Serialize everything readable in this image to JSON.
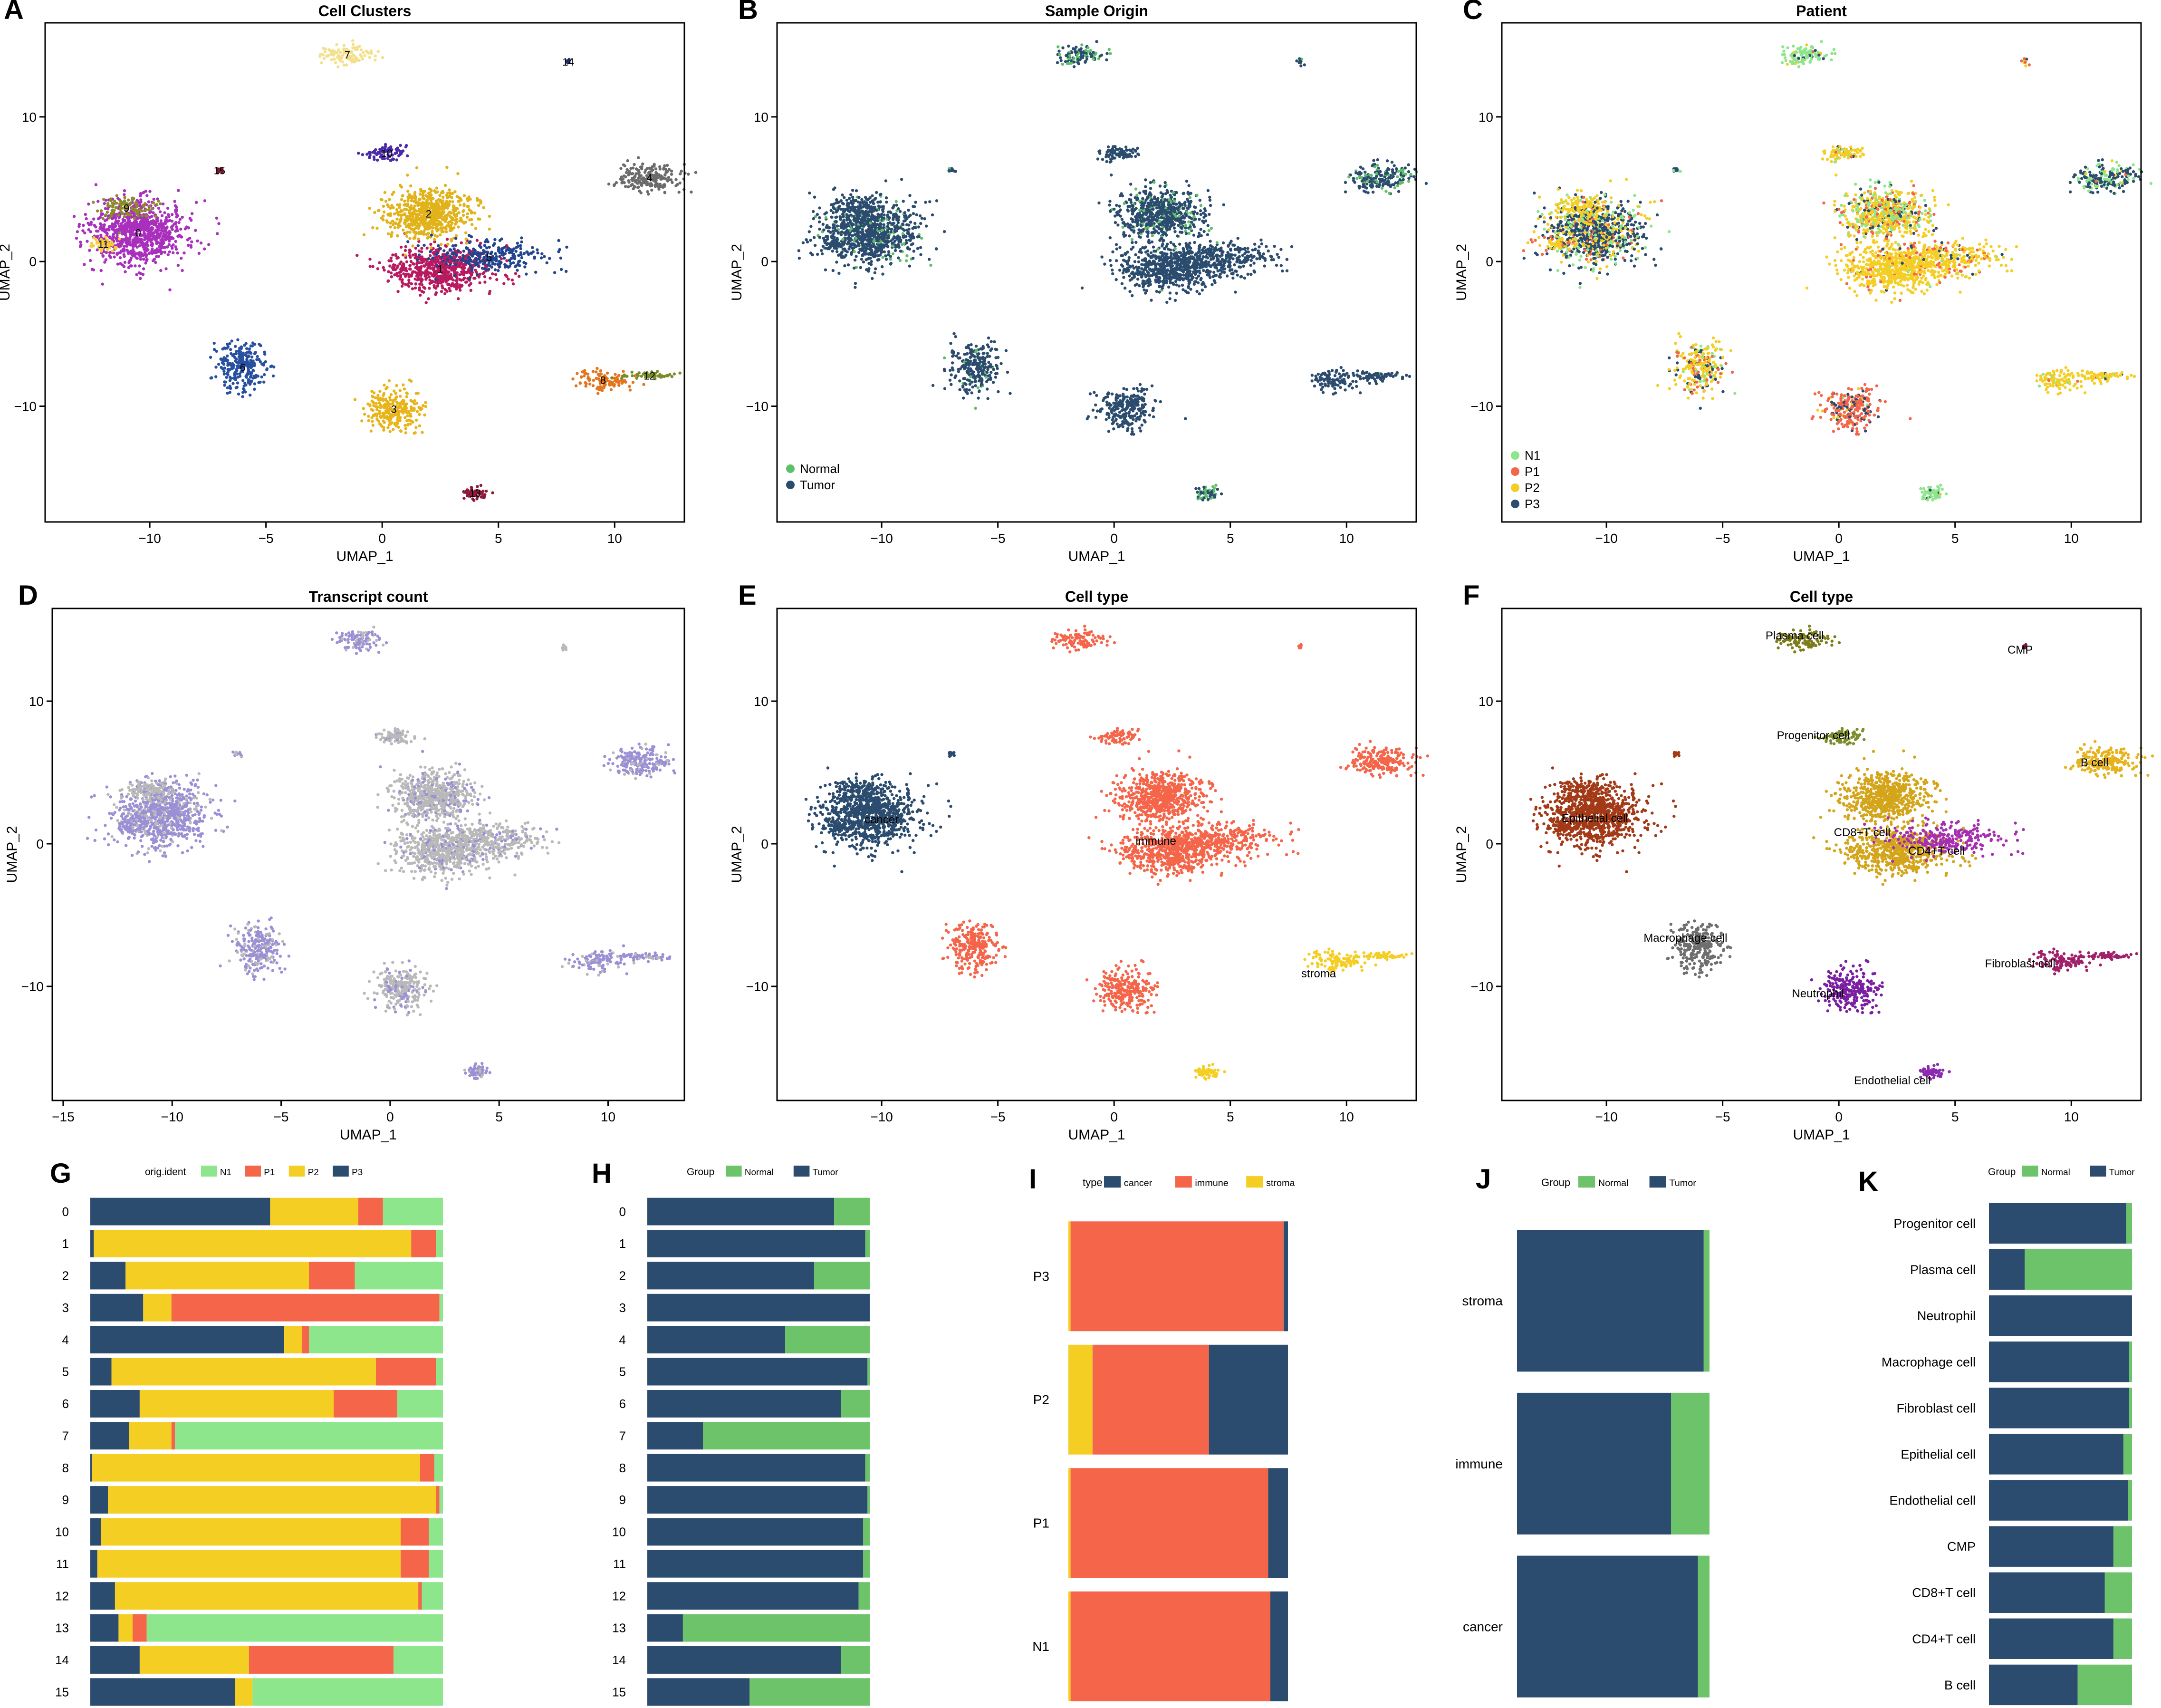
{
  "colors": {
    "navy": "#2b4c6e",
    "red": "#f4654a",
    "yellow": "#f5ce24",
    "light_green": "#8de68c",
    "green": "#6cc36a",
    "grey": "#6b6b6b",
    "lavender": "#9b8fd6",
    "light_grey": "#b9b9b9"
  },
  "chart_data": [
    {
      "panel": "A",
      "type": "scatter",
      "title": "Cell Clusters",
      "xlabel": "UMAP_1",
      "ylabel": "UMAP_2",
      "xlim": [
        -14.5,
        13
      ],
      "ylim": [
        -18,
        16.5
      ],
      "xticks": [
        -10,
        -5,
        0,
        5,
        10
      ],
      "yticks": [
        -10,
        0,
        10
      ],
      "xtick_labels": [
        "−10",
        "−5",
        "0",
        "5",
        "10"
      ],
      "ytick_labels": [
        "−10",
        "0",
        "10"
      ],
      "clusters": [
        {
          "name": "0",
          "x": -10.5,
          "y": 2.0,
          "sx": 1.7,
          "sy": 1.8,
          "n": 900,
          "color": "#a92fbd"
        },
        {
          "name": "1",
          "x": 2.5,
          "y": -0.5,
          "sx": 1.9,
          "sy": 1.3,
          "n": 650,
          "color": "#b81a5f"
        },
        {
          "name": "2",
          "x": 2.0,
          "y": 3.3,
          "sx": 1.5,
          "sy": 1.4,
          "n": 650,
          "color": "#e1b21a"
        },
        {
          "name": "3",
          "x": 0.5,
          "y": -10.2,
          "sx": 1.0,
          "sy": 1.2,
          "n": 260,
          "color": "#e8b419"
        },
        {
          "name": "4",
          "x": 11.5,
          "y": 5.8,
          "sx": 1.1,
          "sy": 0.8,
          "n": 200,
          "color": "#6b6b6b"
        },
        {
          "name": "5",
          "x": 4.6,
          "y": 0.3,
          "sx": 2.0,
          "sy": 0.9,
          "n": 260,
          "color": "#23448e"
        },
        {
          "name": "6",
          "x": -6.0,
          "y": -7.3,
          "sx": 0.9,
          "sy": 1.4,
          "n": 260,
          "color": "#2750a1"
        },
        {
          "name": "7",
          "x": -1.5,
          "y": 14.3,
          "sx": 0.9,
          "sy": 0.6,
          "n": 110,
          "color": "#f4e08c"
        },
        {
          "name": "8",
          "x": 9.5,
          "y": -8.2,
          "sx": 1.0,
          "sy": 0.6,
          "n": 110,
          "color": "#e4751f"
        },
        {
          "name": "9",
          "x": -11.0,
          "y": 3.7,
          "sx": 0.9,
          "sy": 0.6,
          "n": 110,
          "color": "#8b8b2a"
        },
        {
          "name": "10",
          "x": 0.2,
          "y": 7.5,
          "sx": 0.7,
          "sy": 0.4,
          "n": 80,
          "color": "#4b2ba8"
        },
        {
          "name": "11",
          "x": -12.0,
          "y": 1.2,
          "sx": 0.5,
          "sy": 0.4,
          "n": 50,
          "color": "#f5cf3b"
        },
        {
          "name": "12",
          "x": 11.5,
          "y": -7.9,
          "sx": 0.9,
          "sy": 0.2,
          "n": 60,
          "color": "#7a8c2a"
        },
        {
          "name": "13",
          "x": 4.0,
          "y": -16.0,
          "sx": 0.4,
          "sy": 0.4,
          "n": 60,
          "color": "#8b1a3a"
        },
        {
          "name": "14",
          "x": 8.0,
          "y": 13.8,
          "sx": 0.1,
          "sy": 0.15,
          "n": 10,
          "color": "#1f2a6b"
        },
        {
          "name": "15",
          "x": -7.0,
          "y": 6.3,
          "sx": 0.2,
          "sy": 0.15,
          "n": 12,
          "color": "#7b1a2f"
        }
      ]
    },
    {
      "panel": "B",
      "type": "scatter",
      "title": "Sample Origin",
      "xlabel": "UMAP_1",
      "ylabel": "UMAP_2",
      "xlim": [
        -14.5,
        13
      ],
      "ylim": [
        -18,
        16.5
      ],
      "xticks": [
        -10,
        -5,
        0,
        5,
        10
      ],
      "yticks": [
        -10,
        0,
        10
      ],
      "xtick_labels": [
        "−10",
        "−5",
        "0",
        "5",
        "10"
      ],
      "ytick_labels": [
        "−10",
        "0",
        "10"
      ],
      "legend": [
        {
          "label": "Normal",
          "color": "#5fbf6a"
        },
        {
          "label": "Tumor",
          "color": "#2b4c6e"
        }
      ],
      "legend_position": "bottom-left"
    },
    {
      "panel": "C",
      "type": "scatter",
      "title": "Patient",
      "xlabel": "UMAP_1",
      "ylabel": "UMAP_2",
      "xlim": [
        -14.5,
        13
      ],
      "ylim": [
        -18,
        16.5
      ],
      "xticks": [
        -10,
        -5,
        0,
        5,
        10
      ],
      "yticks": [
        -10,
        0,
        10
      ],
      "xtick_labels": [
        "−10",
        "−5",
        "0",
        "5",
        "10"
      ],
      "ytick_labels": [
        "−10",
        "0",
        "10"
      ],
      "legend": [
        {
          "label": "N1",
          "color": "#8de68c"
        },
        {
          "label": "P1",
          "color": "#f4654a"
        },
        {
          "label": "P2",
          "color": "#f5ce24"
        },
        {
          "label": "P3",
          "color": "#2b4c6e"
        }
      ],
      "legend_position": "bottom-left"
    },
    {
      "panel": "D",
      "type": "scatter",
      "title": "Transcript count",
      "xlabel": "UMAP_1",
      "ylabel": "UMAP_2",
      "xlim": [
        -15.5,
        13.5
      ],
      "ylim": [
        -18,
        16.5
      ],
      "xticks": [
        -15,
        -10,
        -5,
        0,
        5,
        10
      ],
      "yticks": [
        -10,
        0,
        10
      ],
      "xtick_labels": [
        "−15",
        "−10",
        "−5",
        "0",
        "5",
        "10"
      ],
      "ytick_labels": [
        "−10",
        "0",
        "10"
      ]
    },
    {
      "panel": "E",
      "type": "scatter",
      "title": "Cell type",
      "xlabel": "UMAP_1",
      "ylabel": "UMAP_2",
      "xlim": [
        -14.5,
        13
      ],
      "ylim": [
        -18,
        16.5
      ],
      "xticks": [
        -10,
        -5,
        0,
        5,
        10
      ],
      "yticks": [
        -10,
        0,
        10
      ],
      "xtick_labels": [
        "−10",
        "−5",
        "0",
        "5",
        "10"
      ],
      "ytick_labels": [
        "−10",
        "0",
        "10"
      ],
      "annotations": [
        {
          "text": "cancer",
          "x": -10.0,
          "y": 1.7
        },
        {
          "text": "immune",
          "x": 1.8,
          "y": 0.2
        },
        {
          "text": "stroma",
          "x": 8.8,
          "y": -9.1
        }
      ]
    },
    {
      "panel": "F",
      "type": "scatter",
      "title": "Cell type",
      "xlabel": "UMAP_1",
      "ylabel": "UMAP_2",
      "xlim": [
        -14.5,
        13
      ],
      "ylim": [
        -18,
        16.5
      ],
      "xticks": [
        -10,
        -5,
        0,
        5,
        10
      ],
      "yticks": [
        -10,
        0,
        10
      ],
      "xtick_labels": [
        "−10",
        "−5",
        "0",
        "5",
        "10"
      ],
      "ytick_labels": [
        "−10",
        "0",
        "10"
      ],
      "annotations": [
        {
          "text": "Plasma cell",
          "x": -1.9,
          "y": 14.6
        },
        {
          "text": "CMP",
          "x": 7.8,
          "y": 13.6
        },
        {
          "text": "Progenitor cell",
          "x": -1.1,
          "y": 7.6
        },
        {
          "text": "B cell",
          "x": 11.0,
          "y": 5.7
        },
        {
          "text": "Epithelial cell",
          "x": -10.5,
          "y": 1.8
        },
        {
          "text": "CD8+T cell",
          "x": 1.0,
          "y": 0.8
        },
        {
          "text": "CD4+T cell",
          "x": 4.2,
          "y": -0.5
        },
        {
          "text": "Macrophage cell",
          "x": -6.6,
          "y": -6.6
        },
        {
          "text": "Neutrophil",
          "x": -0.9,
          "y": -10.5
        },
        {
          "text": "Fibroblast cell",
          "x": 7.8,
          "y": -8.4
        },
        {
          "text": "Endothelial cell",
          "x": 2.3,
          "y": -16.6
        }
      ]
    },
    {
      "panel": "G",
      "type": "bar",
      "orientation": "horizontal",
      "stacked": true,
      "legend_title": "orig.ident",
      "categories": [
        "0",
        "1",
        "2",
        "3",
        "4",
        "5",
        "6",
        "7",
        "8",
        "9",
        "10",
        "11",
        "12",
        "13",
        "14",
        "15"
      ],
      "series": [
        {
          "name": "P3",
          "color": "#2b4c6e",
          "values": [
            0.51,
            0.01,
            0.1,
            0.15,
            0.55,
            0.06,
            0.14,
            0.11,
            0.005,
            0.05,
            0.03,
            0.02,
            0.07,
            0.08,
            0.14,
            0.41
          ]
        },
        {
          "name": "P2",
          "color": "#f5ce24",
          "values": [
            0.25,
            0.9,
            0.52,
            0.08,
            0.05,
            0.75,
            0.55,
            0.12,
            0.93,
            0.93,
            0.85,
            0.86,
            0.86,
            0.04,
            0.31,
            0.05
          ]
        },
        {
          "name": "P1",
          "color": "#f4654a",
          "values": [
            0.07,
            0.07,
            0.13,
            0.76,
            0.02,
            0.17,
            0.18,
            0.01,
            0.04,
            0.01,
            0.08,
            0.08,
            0.01,
            0.04,
            0.41,
            0.0
          ]
        },
        {
          "name": "N1",
          "color": "#8de68c",
          "values": [
            0.17,
            0.02,
            0.25,
            0.01,
            0.38,
            0.02,
            0.13,
            0.76,
            0.025,
            0.01,
            0.04,
            0.04,
            0.06,
            0.84,
            0.14,
            0.54
          ]
        }
      ]
    },
    {
      "panel": "H",
      "type": "bar",
      "orientation": "horizontal",
      "stacked": true,
      "legend_title": "Group",
      "categories": [
        "0",
        "1",
        "2",
        "3",
        "4",
        "5",
        "6",
        "7",
        "8",
        "9",
        "10",
        "11",
        "12",
        "13",
        "14",
        "15"
      ],
      "series": [
        {
          "name": "Tumor",
          "color": "#2b4c6e",
          "values": [
            0.84,
            0.98,
            0.75,
            1.0,
            0.62,
            0.99,
            0.87,
            0.25,
            0.98,
            0.99,
            0.97,
            0.97,
            0.95,
            0.16,
            0.87,
            0.46
          ]
        },
        {
          "name": "Normal",
          "color": "#6cc36a",
          "values": [
            0.16,
            0.02,
            0.25,
            0.0,
            0.38,
            0.01,
            0.13,
            0.75,
            0.02,
            0.01,
            0.03,
            0.03,
            0.05,
            0.84,
            0.13,
            0.54
          ]
        }
      ]
    },
    {
      "panel": "I",
      "type": "bar",
      "orientation": "horizontal",
      "stacked": true,
      "legend_title": "type",
      "categories": [
        "P3",
        "P2",
        "P1",
        "N1"
      ],
      "series": [
        {
          "name": "stroma",
          "color": "#f5ce24",
          "values": [
            0.01,
            0.11,
            0.01,
            0.01
          ]
        },
        {
          "name": "immune",
          "color": "#f4654a",
          "values": [
            0.97,
            0.53,
            0.9,
            0.91
          ]
        },
        {
          "name": "cancer",
          "color": "#2b4c6e",
          "values": [
            0.02,
            0.36,
            0.09,
            0.08
          ]
        }
      ]
    },
    {
      "panel": "J",
      "type": "bar",
      "orientation": "horizontal",
      "stacked": true,
      "legend_title": "Group",
      "categories": [
        "stroma",
        "immune",
        "cancer"
      ],
      "series": [
        {
          "name": "Tumor",
          "color": "#2b4c6e",
          "values": [
            0.97,
            0.8,
            0.94
          ]
        },
        {
          "name": "Normal",
          "color": "#6cc36a",
          "values": [
            0.03,
            0.2,
            0.06
          ]
        }
      ]
    },
    {
      "panel": "K",
      "type": "bar",
      "orientation": "horizontal",
      "stacked": true,
      "legend_title": "Group",
      "categories": [
        "Progenitor cell",
        "Plasma cell",
        "Neutrophil",
        "Macrophage cell",
        "Fibroblast cell",
        "Epithelial cell",
        "Endothelial cell",
        "CMP",
        "CD8+T cell",
        "CD4+T cell",
        "B cell"
      ],
      "series": [
        {
          "name": "Tumor",
          "color": "#2b4c6e",
          "values": [
            0.96,
            0.25,
            1.0,
            0.98,
            0.98,
            0.94,
            0.97,
            0.87,
            0.81,
            0.87,
            0.62
          ]
        },
        {
          "name": "Normal",
          "color": "#6cc36a",
          "values": [
            0.04,
            0.75,
            0.0,
            0.02,
            0.02,
            0.06,
            0.03,
            0.13,
            0.19,
            0.13,
            0.38
          ]
        }
      ]
    }
  ]
}
